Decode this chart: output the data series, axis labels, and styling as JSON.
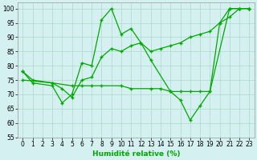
{
  "line1_x": [
    0,
    1,
    3,
    4,
    5,
    6,
    7,
    8,
    9,
    10,
    11,
    12,
    13,
    15,
    16,
    17,
    18,
    19,
    21,
    22,
    23
  ],
  "line1_y": [
    78,
    74,
    73,
    67,
    70,
    81,
    80,
    96,
    100,
    91,
    93,
    88,
    82,
    71,
    68,
    61,
    66,
    71,
    100,
    100,
    100
  ],
  "line2_x": [
    0,
    3,
    5,
    6,
    7,
    8,
    10,
    11,
    13,
    14,
    15,
    16,
    17,
    18,
    19,
    20,
    21,
    22,
    23
  ],
  "line2_y": [
    75,
    74,
    73,
    73,
    73,
    73,
    73,
    72,
    72,
    72,
    71,
    71,
    71,
    71,
    71,
    95,
    97,
    100,
    100
  ],
  "line3_x": [
    0,
    1,
    3,
    4,
    5,
    6,
    7,
    8,
    9,
    10,
    11,
    12,
    13,
    14,
    15,
    16,
    17,
    18,
    19,
    20,
    21,
    22,
    23
  ],
  "line3_y": [
    78,
    75,
    74,
    72,
    69,
    75,
    76,
    83,
    86,
    85,
    87,
    88,
    85,
    86,
    87,
    88,
    90,
    91,
    92,
    95,
    100,
    100,
    100
  ],
  "line_color": "#00aa00",
  "bg_color": "#d4f0f0",
  "grid_color": "#b0d8cc",
  "xlabel": "Humidité relative (%)",
  "xlim": [
    -0.5,
    23.5
  ],
  "ylim": [
    55,
    102
  ],
  "yticks": [
    55,
    60,
    65,
    70,
    75,
    80,
    85,
    90,
    95,
    100
  ],
  "xticks": [
    0,
    1,
    2,
    3,
    4,
    5,
    6,
    7,
    8,
    9,
    10,
    11,
    12,
    13,
    14,
    15,
    16,
    17,
    18,
    19,
    20,
    21,
    22,
    23
  ],
  "tick_fontsize": 5.5,
  "xlabel_fontsize": 6.5
}
